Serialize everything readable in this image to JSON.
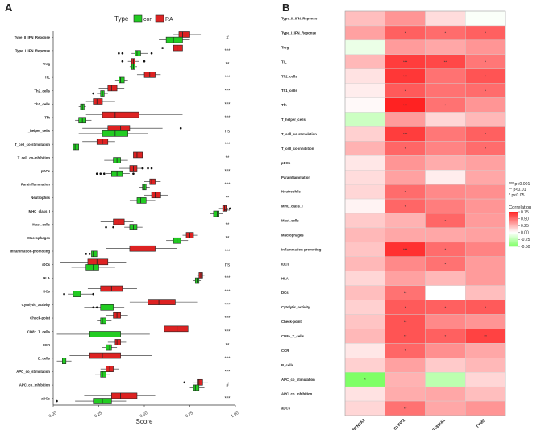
{
  "chart_data": [
    {
      "panel": "A",
      "type": "boxplot",
      "legend_title": "Type",
      "legend_position": "top",
      "groups": [
        {
          "name": "con",
          "color": "#22cc22"
        },
        {
          "name": "RA",
          "color": "#dd2222"
        }
      ],
      "xlabel": "Score",
      "xlim": [
        0.0,
        1.0
      ],
      "xticks": [
        "0.00",
        "0.25",
        "0.50",
        "0.75",
        "1.00"
      ],
      "xtick_values": [
        0,
        0.25,
        0.5,
        0.75,
        1.0
      ],
      "categories": [
        {
          "label": "Type_II_IFN_Reponse",
          "sig": "#",
          "con": [
            0.58,
            0.62,
            0.66,
            0.71,
            0.75
          ],
          "RA": [
            0.66,
            0.69,
            0.71,
            0.75,
            0.81
          ],
          "outliers_con": [],
          "outliers_RA": []
        },
        {
          "label": "Type_I_IFN_Reponse",
          "sig": "***",
          "con": [
            0.43,
            0.45,
            0.46,
            0.48,
            0.52
          ],
          "RA": [
            0.62,
            0.66,
            0.68,
            0.71,
            0.75
          ],
          "outliers_con": [
            0.36,
            0.38,
            0.54
          ],
          "outliers_RA": [
            0.6
          ]
        },
        {
          "label": "Treg",
          "sig": "**",
          "con": [
            0.42,
            0.43,
            0.44,
            0.45,
            0.46
          ],
          "RA": [
            0.41,
            0.43,
            0.44,
            0.45,
            0.47
          ],
          "outliers_con": [],
          "outliers_RA": [
            0.38,
            0.5
          ]
        },
        {
          "label": "TIL",
          "sig": "***",
          "con": [
            0.34,
            0.36,
            0.37,
            0.39,
            0.41
          ],
          "RA": [
            0.46,
            0.5,
            0.53,
            0.56,
            0.59
          ],
          "outliers_con": [],
          "outliers_RA": []
        },
        {
          "label": "Th2_cells",
          "sig": "***",
          "con": [
            0.24,
            0.26,
            0.27,
            0.28,
            0.3
          ],
          "RA": [
            0.25,
            0.3,
            0.32,
            0.35,
            0.39
          ],
          "outliers_con": [
            0.22
          ],
          "outliers_RA": []
        },
        {
          "label": "Th1_cells",
          "sig": "***",
          "con": [
            0.14,
            0.15,
            0.16,
            0.17,
            0.18
          ],
          "RA": [
            0.18,
            0.22,
            0.24,
            0.27,
            0.34
          ],
          "outliers_con": [],
          "outliers_RA": []
        },
        {
          "label": "Tfh",
          "sig": "***",
          "con": [
            0.12,
            0.14,
            0.16,
            0.18,
            0.21
          ],
          "RA": [
            0.18,
            0.27,
            0.34,
            0.47,
            0.71
          ],
          "outliers_con": [],
          "outliers_RA": []
        },
        {
          "label": "T_helper_cells",
          "sig": "ns",
          "con": [
            0.14,
            0.27,
            0.34,
            0.41,
            0.52
          ],
          "RA": [
            0.16,
            0.3,
            0.37,
            0.42,
            0.6
          ],
          "outliers_con": [],
          "outliers_RA": [
            0.7
          ]
        },
        {
          "label": "T_cell_co-stimulation",
          "sig": "***",
          "con": [
            0.08,
            0.11,
            0.12,
            0.14,
            0.17
          ],
          "RA": [
            0.16,
            0.24,
            0.27,
            0.3,
            0.34
          ],
          "outliers_con": [],
          "outliers_RA": []
        },
        {
          "label": "T_cell_co-inhibition",
          "sig": "**",
          "con": [
            0.28,
            0.33,
            0.35,
            0.37,
            0.41
          ],
          "RA": [
            0.37,
            0.44,
            0.46,
            0.49,
            0.52
          ],
          "outliers_con": [],
          "outliers_RA": []
        },
        {
          "label": "pDCs",
          "sig": "***",
          "con": [
            0.29,
            0.32,
            0.35,
            0.38,
            0.42
          ],
          "RA": [
            0.36,
            0.42,
            0.44,
            0.46,
            0.5
          ],
          "outliers_con": [
            0.24,
            0.26,
            0.28,
            0.44
          ],
          "outliers_RA": [
            0.49,
            0.52,
            0.54
          ]
        },
        {
          "label": "Parainflammation",
          "sig": "***",
          "con": [
            0.47,
            0.49,
            0.5,
            0.51,
            0.53
          ],
          "RA": [
            0.5,
            0.53,
            0.54,
            0.56,
            0.59
          ],
          "outliers_con": [],
          "outliers_RA": []
        },
        {
          "label": "Neutrophils",
          "sig": "**",
          "con": [
            0.42,
            0.46,
            0.48,
            0.51,
            0.56
          ],
          "RA": [
            0.5,
            0.54,
            0.56,
            0.59,
            0.63
          ],
          "outliers_con": [],
          "outliers_RA": []
        },
        {
          "label": "MHC_class_I",
          "sig": "***",
          "con": [
            0.86,
            0.88,
            0.9,
            0.91,
            0.93
          ],
          "RA": [
            0.91,
            0.93,
            0.94,
            0.95,
            0.96
          ],
          "outliers_con": [],
          "outliers_RA": [
            0.97
          ]
        },
        {
          "label": "Mast_cells",
          "sig": "**",
          "con": [
            0.39,
            0.42,
            0.44,
            0.46,
            0.49
          ],
          "RA": [
            0.26,
            0.33,
            0.36,
            0.39,
            0.44
          ],
          "outliers_con": [
            0.29,
            0.33
          ],
          "outliers_RA": []
        },
        {
          "label": "Macrophages",
          "sig": "**",
          "con": [
            0.62,
            0.66,
            0.68,
            0.7,
            0.74
          ],
          "RA": [
            0.71,
            0.73,
            0.75,
            0.77,
            0.79
          ],
          "outliers_con": [],
          "outliers_RA": []
        },
        {
          "label": "Inflammation-promoting",
          "sig": "***",
          "con": [
            0.17,
            0.21,
            0.22,
            0.24,
            0.26
          ],
          "RA": [
            0.29,
            0.42,
            0.52,
            0.56,
            0.68
          ],
          "outliers_con": [
            0.18,
            0.2
          ],
          "outliers_RA": []
        },
        {
          "label": "iDCs",
          "sig": "ns",
          "con": [
            0.1,
            0.18,
            0.22,
            0.25,
            0.34
          ],
          "RA": [
            0.04,
            0.19,
            0.24,
            0.3,
            0.4
          ],
          "outliers_con": [],
          "outliers_RA": []
        },
        {
          "label": "HLA",
          "sig": "***",
          "con": [
            0.77,
            0.78,
            0.79,
            0.8,
            0.81
          ],
          "RA": [
            0.79,
            0.8,
            0.81,
            0.82,
            0.83
          ],
          "outliers_con": [],
          "outliers_RA": []
        },
        {
          "label": "DCs",
          "sig": "***",
          "con": [
            0.08,
            0.11,
            0.13,
            0.15,
            0.22
          ],
          "RA": [
            0.19,
            0.26,
            0.32,
            0.38,
            0.46
          ],
          "outliers_con": [
            0.06,
            0.22
          ],
          "outliers_RA": []
        },
        {
          "label": "Cytolytic_activity",
          "sig": "***",
          "con": [
            0.17,
            0.26,
            0.29,
            0.33,
            0.39
          ],
          "RA": [
            0.42,
            0.52,
            0.58,
            0.67,
            0.79
          ],
          "outliers_con": [
            0.22,
            0.24
          ],
          "outliers_RA": []
        },
        {
          "label": "Check-point",
          "sig": "***",
          "con": [
            0.24,
            0.26,
            0.27,
            0.29,
            0.32
          ],
          "RA": [
            0.29,
            0.33,
            0.35,
            0.37,
            0.41
          ],
          "outliers_con": [],
          "outliers_RA": []
        },
        {
          "label": "CD8+_T_cells",
          "sig": "***",
          "con": [
            0.02,
            0.2,
            0.29,
            0.37,
            0.53
          ],
          "RA": [
            0.37,
            0.61,
            0.68,
            0.74,
            0.86
          ],
          "outliers_con": [],
          "outliers_RA": []
        },
        {
          "label": "CCR",
          "sig": "**",
          "con": [
            0.27,
            0.29,
            0.31,
            0.32,
            0.35
          ],
          "RA": [
            0.3,
            0.34,
            0.35,
            0.37,
            0.4
          ],
          "outliers_con": [],
          "outliers_RA": []
        },
        {
          "label": "B_cells",
          "sig": "***",
          "con": [
            0.02,
            0.05,
            0.06,
            0.07,
            0.1
          ],
          "RA": [
            0.09,
            0.2,
            0.27,
            0.37,
            0.54
          ],
          "outliers_con": [],
          "outliers_RA": []
        },
        {
          "label": "APC_co_stimulation",
          "sig": "***",
          "con": [
            0.23,
            0.26,
            0.27,
            0.29,
            0.31
          ],
          "RA": [
            0.26,
            0.29,
            0.31,
            0.33,
            0.36
          ],
          "outliers_con": [],
          "outliers_RA": []
        },
        {
          "label": "APC_co_inhibition",
          "sig": "#",
          "con": [
            0.75,
            0.77,
            0.78,
            0.8,
            0.83
          ],
          "RA": [
            0.77,
            0.79,
            0.8,
            0.82,
            0.85
          ],
          "outliers_con": [],
          "outliers_RA": [
            0.72
          ]
        },
        {
          "label": "aDCs",
          "sig": "***",
          "con": [
            0.12,
            0.22,
            0.27,
            0.32,
            0.4
          ],
          "RA": [
            0.17,
            0.32,
            0.37,
            0.46,
            0.56
          ],
          "outliers_con": [
            0.02
          ],
          "outliers_RA": []
        }
      ]
    },
    {
      "panel": "B",
      "type": "heatmap",
      "xlabels": [
        "BTN3A2",
        "CYFIP2",
        "ST8SIA1",
        "TYMS"
      ],
      "ylabels": [
        "Type_II_IFN_Reponse",
        "Type_I_IFN_Reponse",
        "Treg",
        "TIL",
        "Th2_cells",
        "Th1_cells",
        "Tfh",
        "T_helper_cells",
        "T_cell_co-stimulation",
        "T_cell_co-inhibition",
        "pDCs",
        "Parainflammation",
        "Neutrophils",
        "MHC_class_I",
        "Mast_cells",
        "Macrophages",
        "Inflammation-promoting",
        "iDCs",
        "HLA",
        "DCs",
        "Cytolytic_activity",
        "Check-point",
        "CD8+_T_cells",
        "CCR",
        "B_cells",
        "APC_co_stimulation",
        "APC_co_inhibition",
        "aDCs"
      ],
      "values": [
        [
          0.22,
          0.36,
          0.12,
          -0.02
        ],
        [
          0.32,
          0.54,
          0.5,
          0.54
        ],
        [
          -0.08,
          0.34,
          0.3,
          0.36
        ],
        [
          0.24,
          0.66,
          0.62,
          0.46
        ],
        [
          0.1,
          0.68,
          0.48,
          0.58
        ],
        [
          0.06,
          0.56,
          0.48,
          0.5
        ],
        [
          0.02,
          0.8,
          0.48,
          0.36
        ],
        [
          -0.2,
          0.34,
          0.14,
          0.24
        ],
        [
          0.16,
          0.66,
          0.46,
          0.54
        ],
        [
          0.26,
          0.52,
          0.42,
          0.5
        ],
        [
          0.08,
          0.36,
          0.28,
          0.32
        ],
        [
          0.12,
          0.32,
          0.06,
          0.3
        ],
        [
          0.14,
          0.5,
          0.4,
          0.38
        ],
        [
          0.04,
          0.52,
          0.44,
          0.36
        ],
        [
          0.18,
          0.26,
          0.52,
          0.34
        ],
        [
          0.24,
          0.3,
          0.3,
          0.32
        ],
        [
          0.2,
          0.7,
          0.5,
          0.42
        ],
        [
          0.24,
          0.4,
          0.48,
          0.34
        ],
        [
          0.14,
          0.32,
          0.24,
          0.34
        ],
        [
          0.22,
          0.48,
          0.0,
          0.22
        ],
        [
          0.16,
          0.56,
          0.54,
          0.56
        ],
        [
          0.2,
          0.58,
          0.4,
          0.36
        ],
        [
          0.24,
          0.58,
          0.54,
          0.64
        ],
        [
          0.08,
          0.52,
          0.38,
          0.3
        ],
        [
          0.16,
          0.32,
          0.18,
          0.24
        ],
        [
          -0.5,
          0.26,
          -0.26,
          0.14
        ],
        [
          0.1,
          0.28,
          0.3,
          0.22
        ],
        [
          0.14,
          0.48,
          0.3,
          0.36
        ]
      ],
      "stars": [
        [
          "",
          "",
          "",
          ""
        ],
        [
          "",
          "*",
          "*",
          "*"
        ],
        [
          "",
          "",
          "",
          ""
        ],
        [
          "",
          "***",
          "**",
          "*"
        ],
        [
          "",
          "***",
          "",
          "*"
        ],
        [
          "",
          "*",
          "",
          "*"
        ],
        [
          "",
          "***",
          "*",
          ""
        ],
        [
          "",
          "",
          "",
          ""
        ],
        [
          "",
          "***",
          "",
          "*"
        ],
        [
          "",
          "*",
          "",
          "*"
        ],
        [
          "",
          "",
          "",
          ""
        ],
        [
          "",
          "",
          "",
          ""
        ],
        [
          "",
          "*",
          "",
          ""
        ],
        [
          "",
          "*",
          "",
          ""
        ],
        [
          "",
          "",
          "*",
          ""
        ],
        [
          "",
          "",
          "",
          ""
        ],
        [
          "",
          "***",
          "*",
          ""
        ],
        [
          "",
          "",
          "*",
          ""
        ],
        [
          "",
          "",
          "",
          ""
        ],
        [
          "",
          "**",
          "",
          ""
        ],
        [
          "",
          "*",
          "*",
          "*"
        ],
        [
          "",
          "**",
          "",
          ""
        ],
        [
          "",
          "**",
          "*",
          "**"
        ],
        [
          "",
          "*",
          "",
          ""
        ],
        [
          "",
          "",
          "",
          ""
        ],
        [
          "*",
          "",
          "",
          ""
        ],
        [
          "",
          "",
          "",
          ""
        ],
        [
          "",
          "**",
          "",
          ""
        ]
      ],
      "sig_legend": [
        "*** p<0.001",
        "** p<0.01",
        "* p<0.05"
      ],
      "colorbar_title": "Correlation",
      "colorbar_ticks": [
        "0.75",
        "0.50",
        "0.25",
        "0.00",
        "-0.25",
        "-0.50"
      ],
      "colorbar_tick_values": [
        0.75,
        0.5,
        0.25,
        0,
        -0.25,
        -0.5
      ],
      "color_range": [
        -0.5,
        0.75
      ],
      "colors": {
        "low": "#7fff66",
        "mid": "#ffffff",
        "high": "#ff2222"
      }
    }
  ],
  "panel_letters": {
    "a": "A",
    "b": "B"
  }
}
